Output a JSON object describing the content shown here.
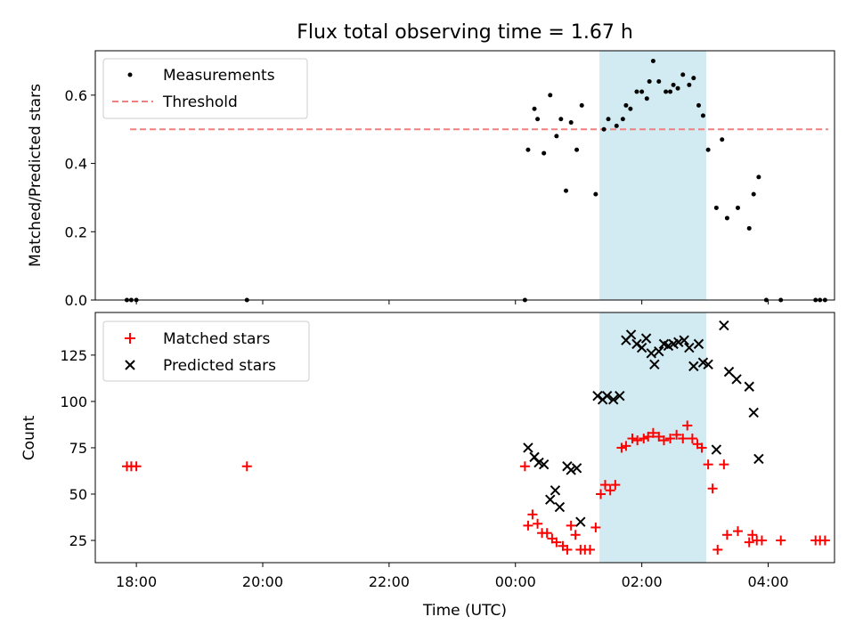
{
  "title": "Flux total observing time = 1.67 h",
  "xlabel": "Time (UTC)",
  "colors": {
    "measurement": "#000000",
    "threshold": "#f08080",
    "matched": "#ff0000",
    "predicted": "#000000",
    "shade": "#add8e6"
  },
  "chart_data": [
    {
      "type": "scatter",
      "ylabel": "Matched/Predicted stars",
      "ylim": [
        0,
        0.73
      ],
      "x_unit": "hours since 18:00 UTC",
      "xlim": [
        -0.65,
        11.05
      ],
      "x_ticks": [
        0,
        2,
        4,
        6,
        8,
        10
      ],
      "x_tick_labels": [
        "18:00",
        "20:00",
        "22:00",
        "00:00",
        "02:00",
        "04:00"
      ],
      "y_ticks": [
        0,
        0.2,
        0.4,
        0.6
      ],
      "y_tick_labels": [
        "0.0",
        "0.2",
        "0.4",
        "0.6"
      ],
      "legend": {
        "position": "top-left",
        "entries": [
          "Measurements",
          "Threshold"
        ]
      },
      "shaded_span": [
        7.33,
        9.02
      ],
      "threshold": {
        "name": "Threshold",
        "y": 0.5,
        "x_range": [
          -0.1,
          10.95
        ]
      },
      "series": [
        {
          "name": "Measurements",
          "points": [
            [
              -0.15,
              0
            ],
            [
              -0.08,
              0
            ],
            [
              0.0,
              0
            ],
            [
              1.75,
              0
            ],
            [
              6.15,
              0
            ],
            [
              6.2,
              0.44
            ],
            [
              6.3,
              0.56
            ],
            [
              6.35,
              0.53
            ],
            [
              6.45,
              0.43
            ],
            [
              6.55,
              0.6
            ],
            [
              6.65,
              0.48
            ],
            [
              6.72,
              0.53
            ],
            [
              6.8,
              0.32
            ],
            [
              6.88,
              0.52
            ],
            [
              6.97,
              0.44
            ],
            [
              7.05,
              0.57
            ],
            [
              7.27,
              0.31
            ],
            [
              7.4,
              0.5
            ],
            [
              7.47,
              0.53
            ],
            [
              7.6,
              0.51
            ],
            [
              7.7,
              0.53
            ],
            [
              7.75,
              0.57
            ],
            [
              7.82,
              0.56
            ],
            [
              7.92,
              0.61
            ],
            [
              8.0,
              0.61
            ],
            [
              8.08,
              0.59
            ],
            [
              8.12,
              0.64
            ],
            [
              8.18,
              0.7
            ],
            [
              8.27,
              0.64
            ],
            [
              8.38,
              0.61
            ],
            [
              8.45,
              0.61
            ],
            [
              8.5,
              0.63
            ],
            [
              8.57,
              0.62
            ],
            [
              8.65,
              0.66
            ],
            [
              8.75,
              0.63
            ],
            [
              8.82,
              0.65
            ],
            [
              8.9,
              0.57
            ],
            [
              8.97,
              0.54
            ],
            [
              9.05,
              0.44
            ],
            [
              9.18,
              0.27
            ],
            [
              9.27,
              0.47
            ],
            [
              9.35,
              0.24
            ],
            [
              9.52,
              0.27
            ],
            [
              9.7,
              0.21
            ],
            [
              9.77,
              0.31
            ],
            [
              9.85,
              0.36
            ],
            [
              9.97,
              0
            ],
            [
              10.2,
              0
            ],
            [
              10.75,
              0
            ],
            [
              10.82,
              0
            ],
            [
              10.9,
              0
            ]
          ]
        }
      ]
    },
    {
      "type": "scatter",
      "ylabel": "Count",
      "xlabel": "Time (UTC)",
      "ylim": [
        13,
        148
      ],
      "x_unit": "hours since 18:00 UTC",
      "xlim": [
        -0.65,
        11.05
      ],
      "x_ticks": [
        0,
        2,
        4,
        6,
        8,
        10
      ],
      "x_tick_labels": [
        "18:00",
        "20:00",
        "22:00",
        "00:00",
        "02:00",
        "04:00"
      ],
      "y_ticks": [
        25,
        50,
        75,
        100,
        125
      ],
      "y_tick_labels": [
        "25",
        "50",
        "75",
        "100",
        "125"
      ],
      "legend": {
        "position": "top-left",
        "entries": [
          "Matched stars",
          "Predicted stars"
        ]
      },
      "shaded_span": [
        7.33,
        9.02
      ],
      "series": [
        {
          "name": "Matched stars",
          "marker": "plus",
          "points": [
            [
              -0.15,
              65
            ],
            [
              -0.08,
              65
            ],
            [
              0.0,
              65
            ],
            [
              1.75,
              65
            ],
            [
              6.15,
              65
            ],
            [
              6.2,
              33
            ],
            [
              6.27,
              39
            ],
            [
              6.35,
              34
            ],
            [
              6.42,
              29
            ],
            [
              6.5,
              29
            ],
            [
              6.58,
              26
            ],
            [
              6.65,
              24
            ],
            [
              6.75,
              22
            ],
            [
              6.82,
              20
            ],
            [
              6.88,
              33
            ],
            [
              6.95,
              28
            ],
            [
              7.03,
              20
            ],
            [
              7.1,
              20
            ],
            [
              7.18,
              20
            ],
            [
              7.27,
              32
            ],
            [
              7.35,
              50
            ],
            [
              7.42,
              55
            ],
            [
              7.5,
              52
            ],
            [
              7.58,
              55
            ],
            [
              7.68,
              75
            ],
            [
              7.75,
              76
            ],
            [
              7.85,
              80
            ],
            [
              7.93,
              79
            ],
            [
              8.03,
              80
            ],
            [
              8.1,
              81
            ],
            [
              8.18,
              83
            ],
            [
              8.27,
              81
            ],
            [
              8.35,
              79
            ],
            [
              8.45,
              80
            ],
            [
              8.55,
              82
            ],
            [
              8.65,
              80
            ],
            [
              8.72,
              87
            ],
            [
              8.8,
              80
            ],
            [
              8.88,
              77
            ],
            [
              8.95,
              75
            ],
            [
              9.05,
              66
            ],
            [
              9.12,
              53
            ],
            [
              9.2,
              20
            ],
            [
              9.3,
              66
            ],
            [
              9.35,
              28
            ],
            [
              9.52,
              30
            ],
            [
              9.7,
              24
            ],
            [
              9.75,
              28
            ],
            [
              9.82,
              25
            ],
            [
              9.9,
              25
            ],
            [
              10.2,
              25
            ],
            [
              10.75,
              25
            ],
            [
              10.82,
              25
            ],
            [
              10.9,
              25
            ]
          ]
        },
        {
          "name": "Predicted stars",
          "marker": "x",
          "points": [
            [
              6.2,
              75
            ],
            [
              6.3,
              70
            ],
            [
              6.37,
              67
            ],
            [
              6.45,
              66
            ],
            [
              6.55,
              47
            ],
            [
              6.63,
              52
            ],
            [
              6.7,
              43
            ],
            [
              6.82,
              65
            ],
            [
              6.88,
              63
            ],
            [
              6.97,
              64
            ],
            [
              7.03,
              35
            ],
            [
              7.3,
              103
            ],
            [
              7.38,
              101
            ],
            [
              7.45,
              103
            ],
            [
              7.55,
              101
            ],
            [
              7.65,
              103
            ],
            [
              7.75,
              133
            ],
            [
              7.83,
              136
            ],
            [
              7.92,
              131
            ],
            [
              8.0,
              129
            ],
            [
              8.07,
              134
            ],
            [
              8.15,
              126
            ],
            [
              8.2,
              120
            ],
            [
              8.27,
              127
            ],
            [
              8.35,
              131
            ],
            [
              8.42,
              130
            ],
            [
              8.5,
              131
            ],
            [
              8.58,
              132
            ],
            [
              8.67,
              133
            ],
            [
              8.75,
              129
            ],
            [
              8.82,
              119
            ],
            [
              8.9,
              131
            ],
            [
              8.97,
              121
            ],
            [
              9.05,
              120
            ],
            [
              9.18,
              74
            ],
            [
              9.3,
              141
            ],
            [
              9.38,
              116
            ],
            [
              9.5,
              112
            ],
            [
              9.7,
              108
            ],
            [
              9.77,
              94
            ],
            [
              9.85,
              69
            ]
          ]
        }
      ]
    }
  ]
}
